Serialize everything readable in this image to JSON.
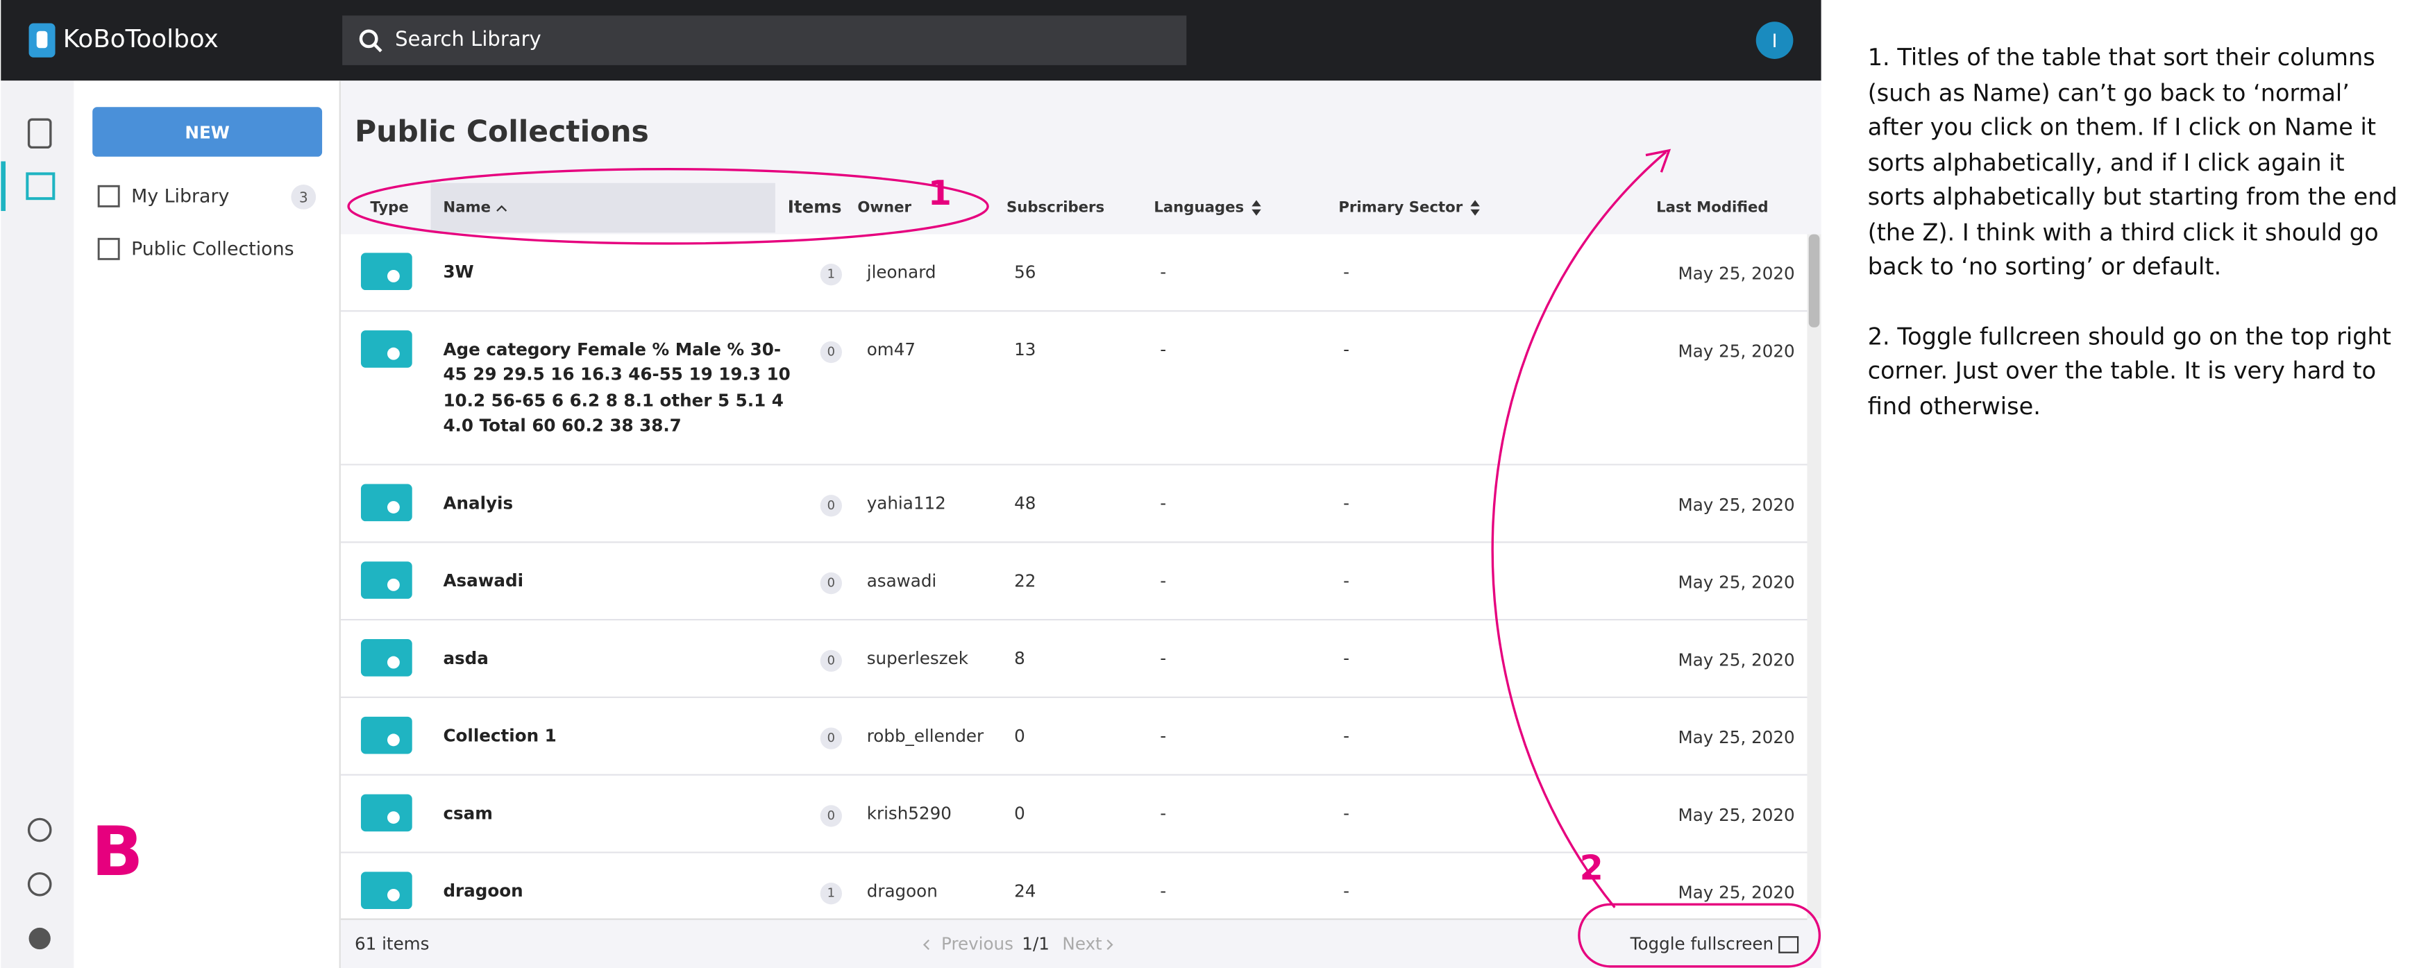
{
  "header": {
    "logo": "KoBoToolbox",
    "search_placeholder": "Search Library",
    "avatar": "I"
  },
  "sidebar": {
    "new_button": "NEW",
    "nav": [
      {
        "label": "My Library",
        "count": 3
      },
      {
        "label": "Public Collections"
      }
    ]
  },
  "page": {
    "title": "Public Collections"
  },
  "table": {
    "columns": [
      "Type",
      "Name",
      "Items",
      "Owner",
      "Subscribers",
      "Languages",
      "Primary Sector",
      "Last Modified"
    ],
    "rows": [
      [
        "3W",
        1,
        "jleonard",
        56,
        "-",
        "-",
        "May 25, 2020"
      ],
      [
        "Age category Female % Male % 30-45 29 29.5 16 16.3 46-55 19 19.3 10 10.2 56-65 6 6.2 8 8.1 other 5 5.1 4 4.0 Total 60 60.2 38 38.7",
        0,
        "om47",
        13,
        "-",
        "-",
        "May 25, 2020"
      ],
      [
        "Analyis",
        0,
        "yahia112",
        48,
        "-",
        "-",
        "May 25, 2020"
      ],
      [
        "Asawadi",
        0,
        "asawadi",
        22,
        "-",
        "-",
        "May 25, 2020"
      ],
      [
        "asda",
        0,
        "superleszek",
        8,
        "-",
        "-",
        "May 25, 2020"
      ],
      [
        "Collection 1",
        0,
        "robb_ellender",
        0,
        "-",
        "-",
        "May 25, 2020"
      ],
      [
        "csam",
        0,
        "krish5290",
        0,
        "-",
        "-",
        "May 25, 2020"
      ],
      [
        "dragoon",
        1,
        "dragoon",
        24,
        "-",
        "-",
        "May 25, 2020"
      ]
    ]
  },
  "footer": {
    "count": "61 items",
    "previous": "Previous",
    "page": "1/1",
    "next": "Next",
    "fullscreen": "Toggle fullscreen"
  },
  "annotations": {
    "marker_1": "1",
    "marker_2": "2",
    "marker_b": "B",
    "notes": [
      "1. Titles of the table that sort their columns (such as Name) can’t go back to ‘normal’ after you click on them. If I click on Name it sorts alphabetically, and if I click again it sorts alphabetically but starting from the end (the Z). I think with a third click it should go back to ‘no sorting’ or default.",
      "2. Toggle fullcreen should go on the top right corner. Just over the table. It is very hard to find otherwise."
    ]
  }
}
